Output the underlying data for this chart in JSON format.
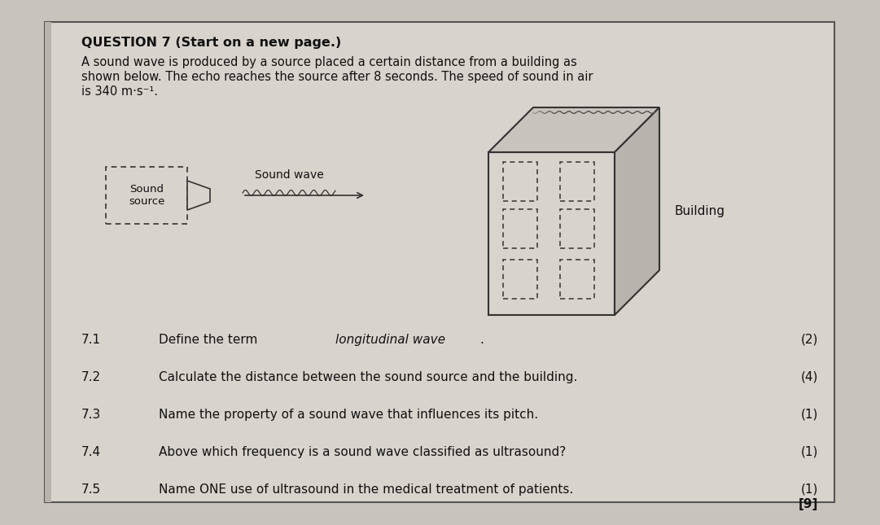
{
  "bg_color": "#c8c3bc",
  "panel_color": "#d8d3cc",
  "text_color": "#111111",
  "title": "QUESTION 7 (Start on a new page.)",
  "intro_line1": "A sound wave is produced by a source placed a certain distance from a building as",
  "intro_line2": "shown below. The echo reaches the source after 8 seconds. The speed of sound in air",
  "intro_line3": "is 340 m·s⁻¹.",
  "questions": [
    {
      "num": "7.1",
      "text": "Define the term ",
      "italic": "longitudinal wave",
      "text2": ".",
      "marks": "(2)"
    },
    {
      "num": "7.2",
      "text": "Calculate the distance between the sound source and the building.",
      "italic": "",
      "text2": "",
      "marks": "(4)"
    },
    {
      "num": "7.3",
      "text": "Name the property of a sound wave that influences its pitch.",
      "italic": "",
      "text2": "",
      "marks": "(1)"
    },
    {
      "num": "7.4",
      "text": "Above which frequency is a sound wave classified as ultrasound?",
      "italic": "",
      "text2": "",
      "marks": "(1)"
    },
    {
      "num": "7.5",
      "text": "Name ONE use of ultrasound in the medical treatment of patients.",
      "italic": "",
      "text2": "",
      "marks": "(1)"
    }
  ],
  "total_marks": "[9]",
  "sound_source_label": "Sound\nsource",
  "sound_wave_label": "Sound wave",
  "building_label": "Building",
  "edge_color": "#555555",
  "win_edge": "#666666"
}
